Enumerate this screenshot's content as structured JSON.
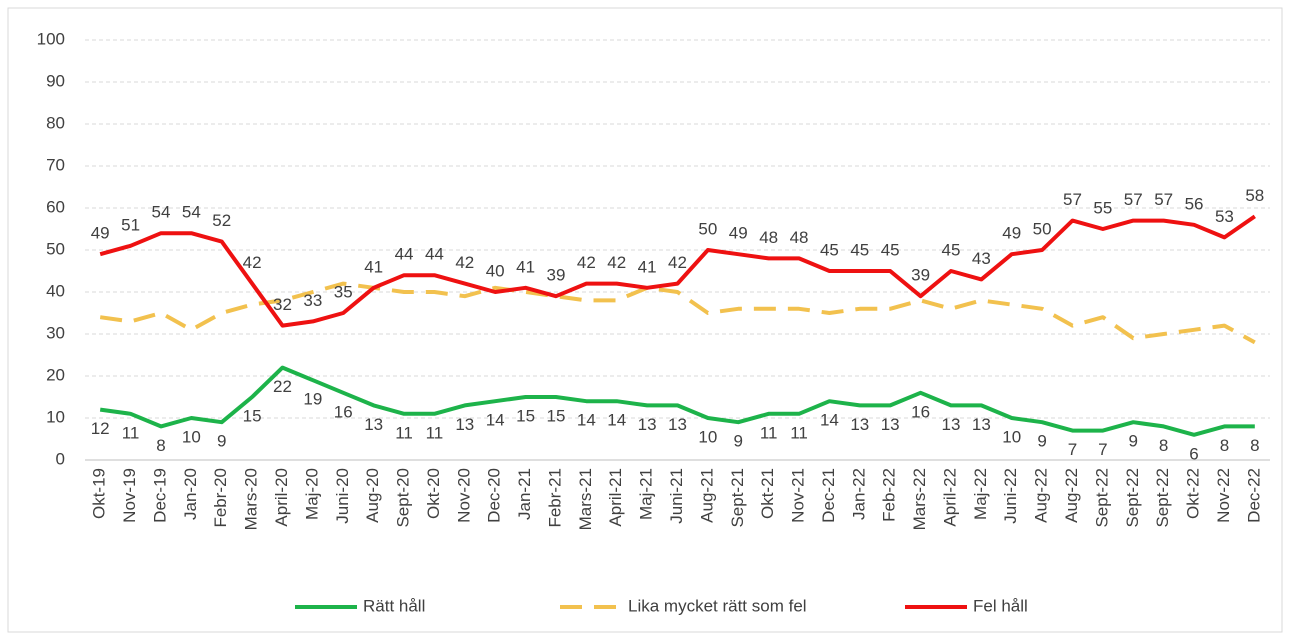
{
  "chart_data": {
    "type": "line",
    "categories": [
      "Okt-19",
      "Nov-19",
      "Dec-19",
      "Jan-20",
      "Febr-20",
      "Mars-20",
      "April-20",
      "Maj-20",
      "Juni-20",
      "Aug-20",
      "Sept-20",
      "Okt-20",
      "Nov-20",
      "Dec-20",
      "Jan-21",
      "Febr-21",
      "Mars-21",
      "April-21",
      "Maj-21",
      "Juni-21",
      "Aug-21",
      "Sept-21",
      "Okt-21",
      "Nov-21",
      "Dec-21",
      "Jan-22",
      "Feb-22",
      "Mars-22",
      "April-22",
      "Maj-22",
      "Juni-22",
      "Aug-22",
      "Aug-22",
      "Sept-22",
      "Sept-22",
      "Sept-22",
      "Okt-22",
      "Nov-22",
      "Dec-22"
    ],
    "series": [
      {
        "name": "Rätt håll",
        "color": "#1db34a",
        "dash": false,
        "labels": "below",
        "values": [
          12,
          11,
          8,
          10,
          9,
          15,
          22,
          19,
          16,
          13,
          11,
          11,
          13,
          14,
          15,
          15,
          14,
          14,
          13,
          13,
          10,
          9,
          11,
          11,
          14,
          13,
          13,
          16,
          13,
          13,
          10,
          9,
          7,
          7,
          9,
          8,
          6,
          8,
          8
        ]
      },
      {
        "name": "Lika mycket rätt som fel",
        "color": "#f2c14e",
        "dash": true,
        "values": [
          34,
          33,
          35,
          31,
          35,
          37,
          38,
          40,
          42,
          41,
          40,
          40,
          39,
          41,
          40,
          39,
          38,
          38,
          41,
          40,
          35,
          36,
          36,
          36,
          35,
          36,
          36,
          38,
          36,
          38,
          37,
          36,
          32,
          34,
          29,
          30,
          31,
          32,
          28
        ]
      },
      {
        "name": "Fel håll",
        "color": "#ee1111",
        "dash": false,
        "labels": "above",
        "values": [
          49,
          51,
          54,
          54,
          52,
          42,
          32,
          33,
          35,
          41,
          44,
          44,
          42,
          40,
          41,
          39,
          42,
          42,
          41,
          42,
          50,
          49,
          48,
          48,
          45,
          45,
          45,
          39,
          45,
          43,
          49,
          50,
          57,
          55,
          57,
          57,
          56,
          53,
          58
        ]
      }
    ],
    "ylim": [
      0,
      100
    ],
    "yticks": [
      0,
      10,
      20,
      30,
      40,
      50,
      60,
      70,
      80,
      90,
      100
    ],
    "grid": true,
    "legend": "bottom"
  }
}
